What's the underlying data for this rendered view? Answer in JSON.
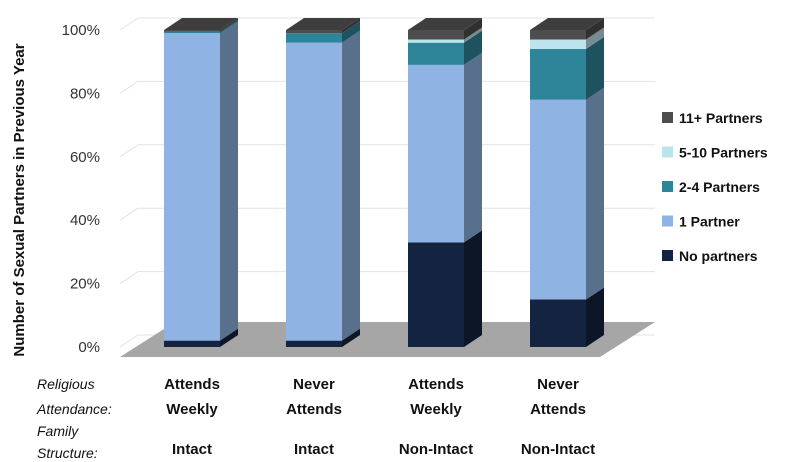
{
  "chart_data": {
    "type": "bar",
    "stacked": true,
    "three_d": true,
    "ylabel": "Number of Sexual Partners in Previous Year",
    "ylim": [
      0,
      100
    ],
    "yticks": [
      "0%",
      "20%",
      "40%",
      "60%",
      "80%",
      "100%"
    ],
    "categories": [
      {
        "attendance": [
          "Attends",
          "Weekly"
        ],
        "family": "Intact"
      },
      {
        "attendance": [
          "Never",
          "Attends"
        ],
        "family": "Intact"
      },
      {
        "attendance": [
          "Attends",
          "Weekly"
        ],
        "family": "Non-Intact"
      },
      {
        "attendance": [
          "Never",
          "Attends"
        ],
        "family": "Non-Intact"
      }
    ],
    "row_labels": {
      "attendance": [
        "Religious",
        "Attendance:"
      ],
      "family": [
        "Family",
        "Structure:"
      ]
    },
    "series": [
      {
        "name": "No partners",
        "color": "#14233f",
        "values": [
          2,
          2,
          33,
          15
        ]
      },
      {
        "name": "1 Partner",
        "color": "#8fb4e3",
        "values": [
          97,
          94,
          56,
          63
        ]
      },
      {
        "name": "2-4 Partners",
        "color": "#2e8498",
        "values": [
          0.5,
          3,
          7,
          16
        ]
      },
      {
        "name": "5-10 Partners",
        "color": "#bde4ec",
        "values": [
          0,
          0,
          1,
          3
        ]
      },
      {
        "name": "11+ Partners",
        "color": "#4d4d4d",
        "values": [
          0.5,
          1,
          3,
          3
        ]
      }
    ],
    "legend_order": [
      "11+ Partners",
      "5-10 Partners",
      "2-4 Partners",
      "1 Partner",
      "No partners"
    ],
    "legend": "right",
    "grid": true,
    "floor_color": "#a6a6a6"
  }
}
